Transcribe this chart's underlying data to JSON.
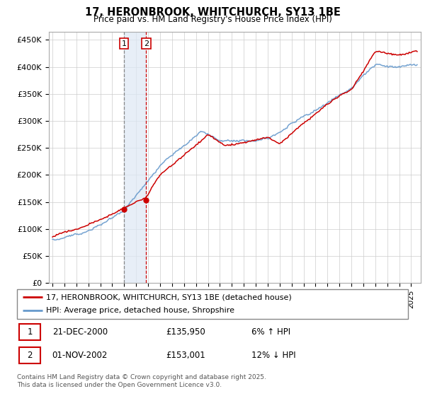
{
  "title": "17, HERONBROOK, WHITCHURCH, SY13 1BE",
  "subtitle": "Price paid vs. HM Land Registry's House Price Index (HPI)",
  "ylabel_ticks": [
    "£0",
    "£50K",
    "£100K",
    "£150K",
    "£200K",
    "£250K",
    "£300K",
    "£350K",
    "£400K",
    "£450K"
  ],
  "ytick_values": [
    0,
    50000,
    100000,
    150000,
    200000,
    250000,
    300000,
    350000,
    400000,
    450000
  ],
  "ylim": [
    0,
    465000
  ],
  "sale1_date": 2000.97,
  "sale1_price": 135950,
  "sale2_date": 2002.83,
  "sale2_price": 153001,
  "sale1_color": "#cc0000",
  "sale2_color": "#cc0000",
  "hpi_color": "#6699cc",
  "price_color": "#cc0000",
  "vline1_color": "#888888",
  "vline2_color": "#cc0000",
  "shading_color": "#dde8f5",
  "legend_label1": "17, HERONBROOK, WHITCHURCH, SY13 1BE (detached house)",
  "legend_label2": "HPI: Average price, detached house, Shropshire",
  "table_row1": [
    "1",
    "21-DEC-2000",
    "£135,950",
    "6% ↑ HPI"
  ],
  "table_row2": [
    "2",
    "01-NOV-2002",
    "£153,001",
    "12% ↓ HPI"
  ],
  "footer": "Contains HM Land Registry data © Crown copyright and database right 2025.\nThis data is licensed under the Open Government Licence v3.0.",
  "seed": 12
}
